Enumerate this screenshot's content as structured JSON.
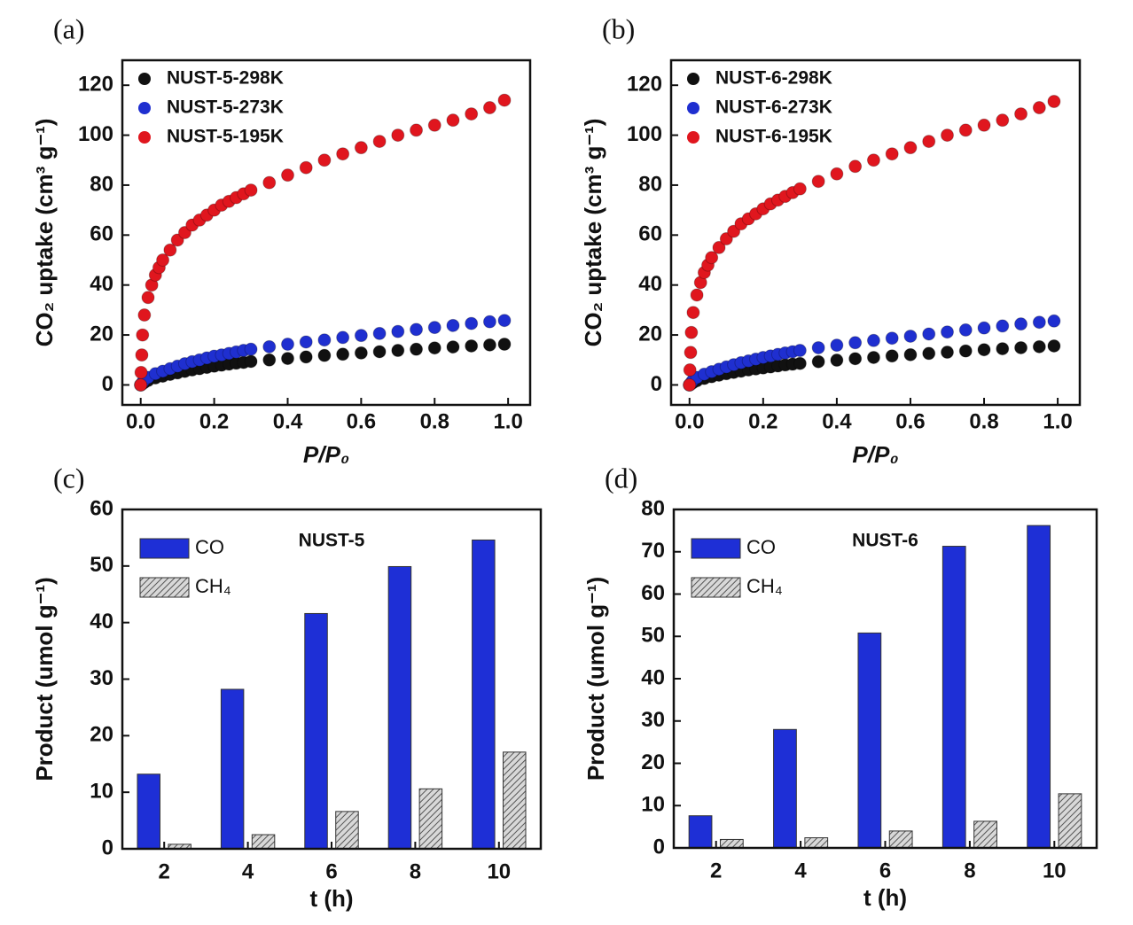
{
  "chart_data": [
    {
      "type": "scatter",
      "panel_label": "(a)",
      "x_label": "P/P₀",
      "y_label": "CO₂ uptake (cm³ g⁻¹)",
      "xlim": [
        -0.05,
        1.06
      ],
      "ylim": [
        -8,
        130
      ],
      "xticks": [
        {
          "value": 0,
          "label": "0.0"
        },
        0.2,
        0.4,
        0.6,
        0.8,
        {
          "value": 1,
          "label": "1.0"
        }
      ],
      "yticks": [
        0,
        20,
        40,
        60,
        80,
        100,
        120
      ],
      "legend": "upper left",
      "series": [
        {
          "name": "NUST-5-298K",
          "color": "#111111",
          "x": [
            0,
            0.005,
            0.01,
            0.02,
            0.04,
            0.06,
            0.08,
            0.1,
            0.12,
            0.14,
            0.16,
            0.18,
            0.2,
            0.22,
            0.24,
            0.26,
            0.28,
            0.3,
            0.35,
            0.4,
            0.45,
            0.5,
            0.55,
            0.6,
            0.65,
            0.7,
            0.75,
            0.8,
            0.85,
            0.9,
            0.95,
            0.99
          ],
          "values": [
            0,
            0.5,
            1,
            1.8,
            2.8,
            3.5,
            4.2,
            4.8,
            5.4,
            6,
            6.5,
            7,
            7.5,
            7.9,
            8.3,
            8.7,
            9,
            9.4,
            10,
            10.6,
            11.2,
            11.8,
            12.3,
            12.8,
            13.3,
            13.8,
            14.3,
            14.8,
            15.2,
            15.6,
            16,
            16.3
          ]
        },
        {
          "name": "NUST-5-273K",
          "color": "#1f2fd0",
          "x": [
            0,
            0.005,
            0.01,
            0.02,
            0.04,
            0.06,
            0.08,
            0.1,
            0.12,
            0.14,
            0.16,
            0.18,
            0.2,
            0.22,
            0.24,
            0.26,
            0.28,
            0.3,
            0.35,
            0.4,
            0.45,
            0.5,
            0.55,
            0.6,
            0.65,
            0.7,
            0.75,
            0.8,
            0.85,
            0.9,
            0.95,
            0.99
          ],
          "values": [
            0,
            1,
            2,
            3,
            4.5,
            5.5,
            6.5,
            7.5,
            8.5,
            9.3,
            10,
            10.8,
            11.5,
            12,
            12.6,
            13.2,
            13.8,
            14.3,
            15.3,
            16.3,
            17.2,
            18,
            19,
            19.8,
            20.6,
            21.4,
            22.2,
            23,
            23.8,
            24.6,
            25.3,
            25.8
          ]
        },
        {
          "name": "NUST-5-195K",
          "color": "#e0161e",
          "x": [
            0,
            0.001,
            0.003,
            0.005,
            0.01,
            0.02,
            0.03,
            0.04,
            0.05,
            0.06,
            0.08,
            0.1,
            0.12,
            0.14,
            0.16,
            0.18,
            0.2,
            0.22,
            0.24,
            0.26,
            0.28,
            0.3,
            0.35,
            0.4,
            0.45,
            0.5,
            0.55,
            0.6,
            0.65,
            0.7,
            0.75,
            0.8,
            0.85,
            0.9,
            0.95,
            0.99
          ],
          "values": [
            0,
            5,
            12,
            20,
            28,
            35,
            40,
            44,
            47,
            50,
            54,
            58,
            61,
            64,
            66,
            68,
            70,
            72,
            73.5,
            75,
            76.5,
            78,
            81,
            84,
            87,
            90,
            92.5,
            95,
            97.5,
            100,
            102,
            104,
            106,
            108.5,
            111,
            114
          ]
        }
      ]
    },
    {
      "type": "scatter",
      "panel_label": "(b)",
      "x_label": "P/P₀",
      "y_label": "CO₂ uptake (cm³ g⁻¹)",
      "xlim": [
        -0.05,
        1.06
      ],
      "ylim": [
        -8,
        130
      ],
      "xticks": [
        {
          "value": 0,
          "label": "0.0"
        },
        0.2,
        0.4,
        0.6,
        0.8,
        {
          "value": 1,
          "label": "1.0"
        }
      ],
      "yticks": [
        0,
        20,
        40,
        60,
        80,
        100,
        120
      ],
      "legend": "upper left",
      "series": [
        {
          "name": "NUST-6-298K",
          "color": "#111111",
          "x": [
            0,
            0.005,
            0.01,
            0.02,
            0.04,
            0.06,
            0.08,
            0.1,
            0.12,
            0.14,
            0.16,
            0.18,
            0.2,
            0.22,
            0.24,
            0.26,
            0.28,
            0.3,
            0.35,
            0.4,
            0.45,
            0.5,
            0.55,
            0.6,
            0.65,
            0.7,
            0.75,
            0.8,
            0.85,
            0.9,
            0.95,
            0.99
          ],
          "values": [
            0,
            0.5,
            1,
            1.7,
            2.6,
            3.3,
            3.9,
            4.5,
            5,
            5.5,
            6,
            6.4,
            6.8,
            7.2,
            7.6,
            8,
            8.3,
            8.6,
            9.3,
            9.9,
            10.5,
            11,
            11.6,
            12.1,
            12.6,
            13.1,
            13.6,
            14.1,
            14.5,
            14.9,
            15.3,
            15.6
          ]
        },
        {
          "name": "NUST-6-273K",
          "color": "#1f2fd0",
          "x": [
            0,
            0.005,
            0.01,
            0.02,
            0.04,
            0.06,
            0.08,
            0.1,
            0.12,
            0.14,
            0.16,
            0.18,
            0.2,
            0.22,
            0.24,
            0.26,
            0.28,
            0.3,
            0.35,
            0.4,
            0.45,
            0.5,
            0.55,
            0.6,
            0.65,
            0.7,
            0.75,
            0.8,
            0.85,
            0.9,
            0.95,
            0.99
          ],
          "values": [
            0,
            1,
            2,
            3,
            4.3,
            5.3,
            6.3,
            7.2,
            8.1,
            8.9,
            9.6,
            10.3,
            11,
            11.6,
            12.2,
            12.8,
            13.3,
            13.8,
            14.9,
            15.9,
            16.9,
            17.8,
            18.7,
            19.5,
            20.4,
            21.2,
            22,
            22.8,
            23.6,
            24.4,
            25.1,
            25.6
          ]
        },
        {
          "name": "NUST-6-195K",
          "color": "#e0161e",
          "x": [
            0,
            0.001,
            0.003,
            0.005,
            0.01,
            0.02,
            0.03,
            0.04,
            0.05,
            0.06,
            0.08,
            0.1,
            0.12,
            0.14,
            0.16,
            0.18,
            0.2,
            0.22,
            0.24,
            0.26,
            0.28,
            0.3,
            0.35,
            0.4,
            0.45,
            0.5,
            0.55,
            0.6,
            0.65,
            0.7,
            0.75,
            0.8,
            0.85,
            0.9,
            0.95,
            0.99
          ],
          "values": [
            0,
            6,
            13,
            21,
            29,
            36,
            41,
            45,
            48,
            51,
            55,
            58.5,
            61.5,
            64.5,
            66.5,
            68.5,
            70.5,
            72.5,
            74,
            75.5,
            77,
            78.5,
            81.5,
            84.5,
            87.5,
            90,
            92.5,
            95,
            97.5,
            100,
            102,
            104,
            106,
            108.5,
            111,
            113.5
          ]
        }
      ]
    },
    {
      "type": "bar",
      "panel_label": "(c)",
      "x_label": "t (h)",
      "y_label": "Product (umol g⁻¹)",
      "annotation": "NUST-5",
      "categories": [
        "2",
        "4",
        "6",
        "8",
        "10"
      ],
      "ylim": [
        0,
        60
      ],
      "yticks": [
        0,
        10,
        20,
        30,
        40,
        50,
        60
      ],
      "legend": "upper left",
      "series": [
        {
          "name": "CO",
          "color": "#1e2fd6",
          "values": [
            13.2,
            28.2,
            41.6,
            49.9,
            54.6
          ]
        },
        {
          "name": "CH₄",
          "color": "hatch",
          "values": [
            0.8,
            2.5,
            6.6,
            10.6,
            17.1
          ]
        }
      ]
    },
    {
      "type": "bar",
      "panel_label": "(d)",
      "x_label": "t (h)",
      "y_label": "Product (umol g⁻¹)",
      "annotation": "NUST-6",
      "categories": [
        "2",
        "4",
        "6",
        "8",
        "10"
      ],
      "ylim": [
        0,
        80
      ],
      "yticks": [
        0,
        10,
        20,
        30,
        40,
        50,
        60,
        70,
        80
      ],
      "legend": "upper left",
      "series": [
        {
          "name": "CO",
          "color": "#1e2fd6",
          "values": [
            7.6,
            28,
            50.8,
            71.3,
            76.2
          ]
        },
        {
          "name": "CH₄",
          "color": "hatch",
          "values": [
            2,
            2.4,
            4,
            6.3,
            12.8
          ]
        }
      ]
    }
  ]
}
